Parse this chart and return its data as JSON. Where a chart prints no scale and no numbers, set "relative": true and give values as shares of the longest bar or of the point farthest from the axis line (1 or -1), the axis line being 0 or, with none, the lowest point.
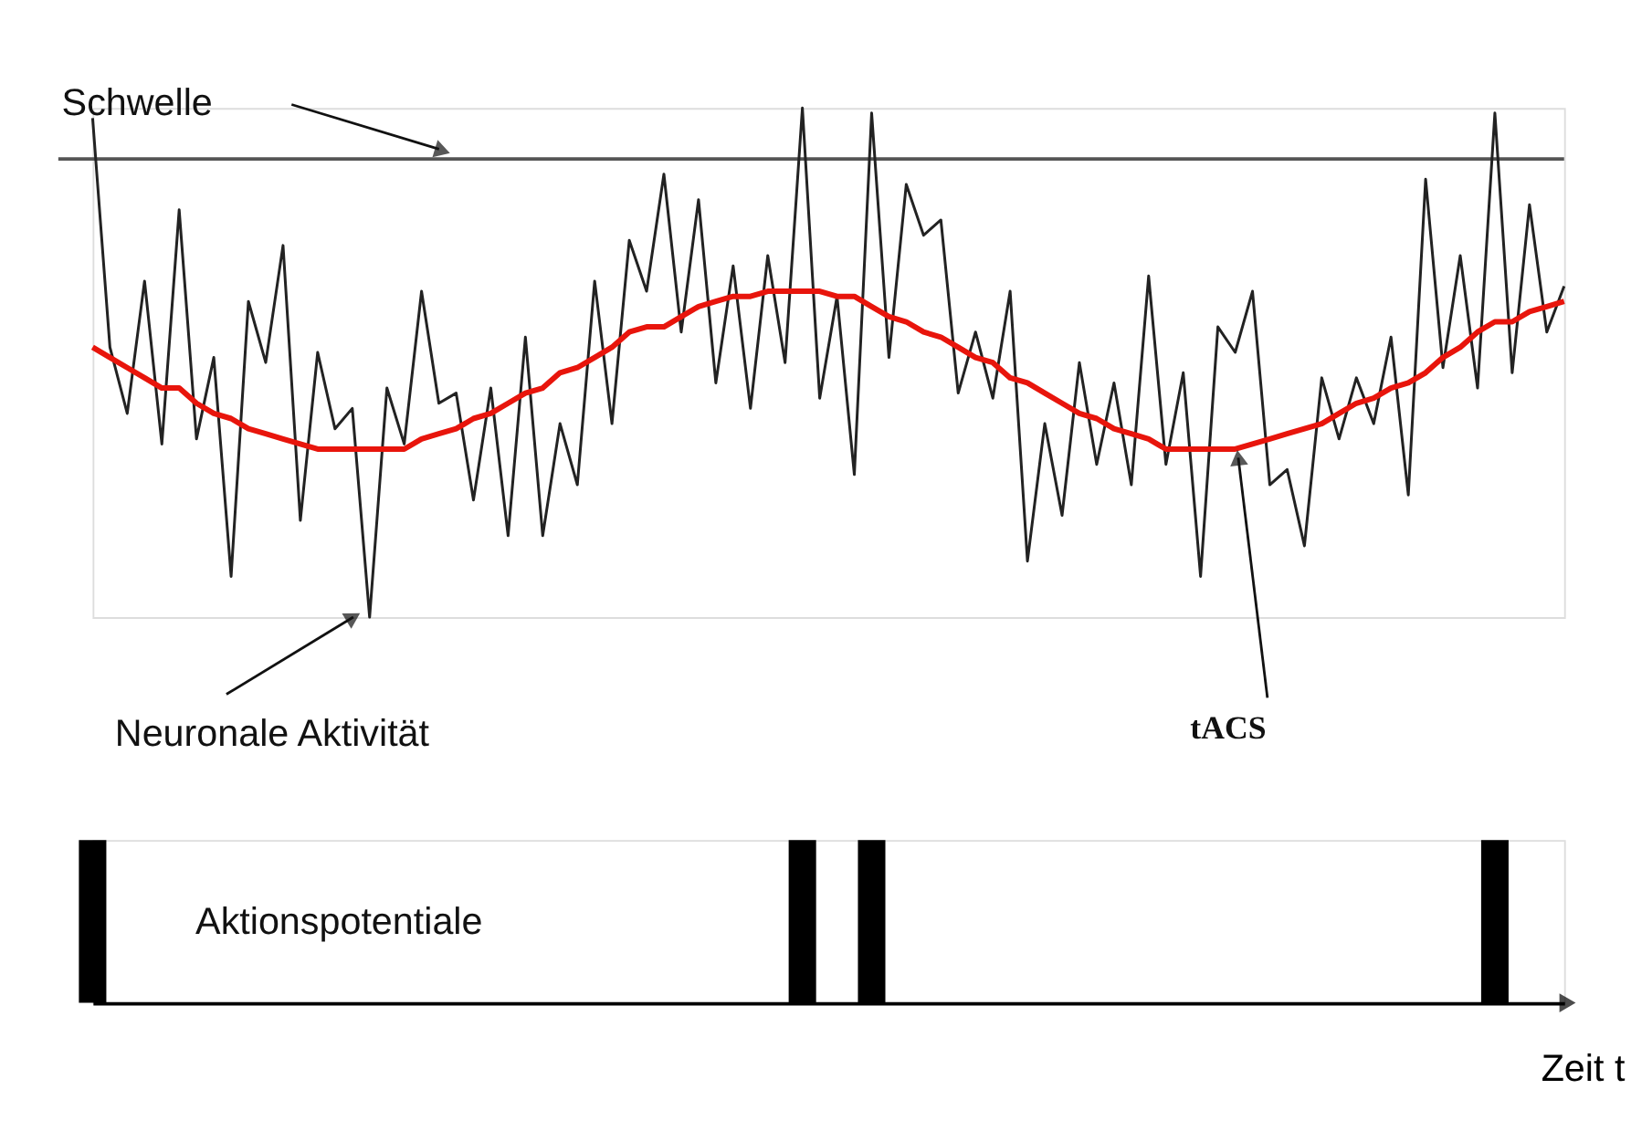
{
  "chart_data": [
    {
      "type": "line",
      "relative": true,
      "marker": "none",
      "line_style": "solid",
      "categories": [
        null,
        null,
        null,
        null,
        null,
        null,
        null,
        null,
        null,
        null,
        null,
        null,
        null,
        null,
        null,
        null,
        null,
        null,
        null,
        null,
        null,
        null,
        null,
        null,
        null,
        null,
        null,
        null,
        null,
        null,
        null,
        null,
        null,
        null,
        null,
        null,
        null,
        null,
        null,
        null,
        null,
        null,
        null,
        null,
        null,
        null,
        null,
        null,
        null,
        null,
        null,
        null,
        null,
        null,
        null,
        null,
        null,
        null,
        null,
        null,
        null,
        null,
        null,
        null,
        null,
        null,
        null,
        null,
        null,
        null,
        null,
        null,
        null,
        null,
        null,
        null,
        null,
        null,
        null,
        null,
        null,
        null,
        null,
        null,
        null,
        null
      ],
      "series": [
        {
          "name": "Neuronale Aktivität",
          "color": "#222222",
          "values": [
            0.98,
            0.53,
            0.4,
            0.66,
            0.34,
            0.8,
            0.35,
            0.51,
            0.08,
            0.62,
            0.5,
            0.73,
            0.19,
            0.52,
            0.37,
            0.41,
            0,
            0.45,
            0.34,
            0.64,
            0.42,
            0.44,
            0.23,
            0.45,
            0.16,
            0.55,
            0.16,
            0.38,
            0.26,
            0.66,
            0.38,
            0.74,
            0.64,
            0.87,
            0.56,
            0.82,
            0.46,
            0.69,
            0.41,
            0.71,
            0.5,
            1,
            0.43,
            0.63,
            0.28,
            0.99,
            0.51,
            0.85,
            0.75,
            0.78,
            0.44,
            0.56,
            0.43,
            0.64,
            0.11,
            0.38,
            0.2,
            0.5,
            0.3,
            0.46,
            0.26,
            0.67,
            0.3,
            0.48,
            0.08,
            0.57,
            0.52,
            0.64,
            0.26,
            0.29,
            0.14,
            0.47,
            0.35,
            0.47,
            0.38,
            0.55,
            0.24,
            0.86,
            0.49,
            0.71,
            0.45,
            0.99,
            0.48,
            0.81,
            0.56,
            0.65
          ]
        },
        {
          "name": "tACS",
          "color": "#e8150c",
          "values": [
            0.53,
            0.51,
            0.49,
            0.47,
            0.45,
            0.45,
            0.42,
            0.4,
            0.39,
            0.37,
            0.36,
            0.35,
            0.34,
            0.33,
            0.33,
            0.33,
            0.33,
            0.33,
            0.33,
            0.35,
            0.36,
            0.37,
            0.39,
            0.4,
            0.42,
            0.44,
            0.45,
            0.48,
            0.49,
            0.51,
            0.53,
            0.56,
            0.57,
            0.57,
            0.59,
            0.61,
            0.62,
            0.63,
            0.63,
            0.64,
            0.64,
            0.64,
            0.64,
            0.63,
            0.63,
            0.61,
            0.59,
            0.58,
            0.56,
            0.55,
            0.53,
            0.51,
            0.5,
            0.47,
            0.46,
            0.44,
            0.42,
            0.4,
            0.39,
            0.37,
            0.36,
            0.35,
            0.33,
            0.33,
            0.33,
            0.33,
            0.33,
            0.34,
            0.35,
            0.36,
            0.37,
            0.38,
            0.4,
            0.42,
            0.43,
            0.45,
            0.46,
            0.48,
            0.51,
            0.53,
            0.56,
            0.58,
            0.58,
            0.6,
            0.61,
            0.62
          ]
        }
      ],
      "ref_lines": [
        {
          "axis": "y",
          "value": 0.9,
          "label": "Schwelle",
          "color": "#555555"
        }
      ]
    },
    {
      "type": "bar",
      "relative": true,
      "xlabel": "Zeit t",
      "categories": [
        null,
        null,
        null,
        null,
        null,
        null,
        null,
        null,
        null,
        null,
        null,
        null,
        null,
        null,
        null,
        null,
        null,
        null,
        null,
        null,
        null,
        null,
        null,
        null,
        null,
        null,
        null,
        null,
        null,
        null,
        null,
        null,
        null,
        null,
        null,
        null,
        null,
        null,
        null,
        null,
        null,
        null,
        null,
        null,
        null,
        null,
        null,
        null,
        null,
        null,
        null,
        null,
        null,
        null,
        null,
        null,
        null,
        null,
        null,
        null,
        null,
        null,
        null,
        null,
        null,
        null,
        null,
        null,
        null,
        null,
        null,
        null,
        null,
        null,
        null,
        null,
        null,
        null,
        null,
        null,
        null,
        null,
        null,
        null,
        null,
        null
      ],
      "series": [
        {
          "name": "Aktionspotentiale",
          "color": "#000000",
          "values": [
            1,
            null,
            null,
            null,
            null,
            null,
            null,
            null,
            null,
            null,
            null,
            null,
            null,
            null,
            null,
            null,
            null,
            null,
            null,
            null,
            null,
            null,
            null,
            null,
            null,
            null,
            null,
            null,
            null,
            null,
            null,
            null,
            null,
            null,
            null,
            null,
            null,
            null,
            null,
            null,
            null,
            1,
            null,
            null,
            null,
            1,
            null,
            null,
            null,
            null,
            null,
            null,
            null,
            null,
            null,
            null,
            null,
            null,
            null,
            null,
            null,
            null,
            null,
            null,
            null,
            null,
            null,
            null,
            null,
            null,
            null,
            null,
            null,
            null,
            null,
            null,
            null,
            null,
            null,
            null,
            null,
            1,
            null,
            null,
            null,
            null
          ]
        }
      ]
    }
  ]
}
